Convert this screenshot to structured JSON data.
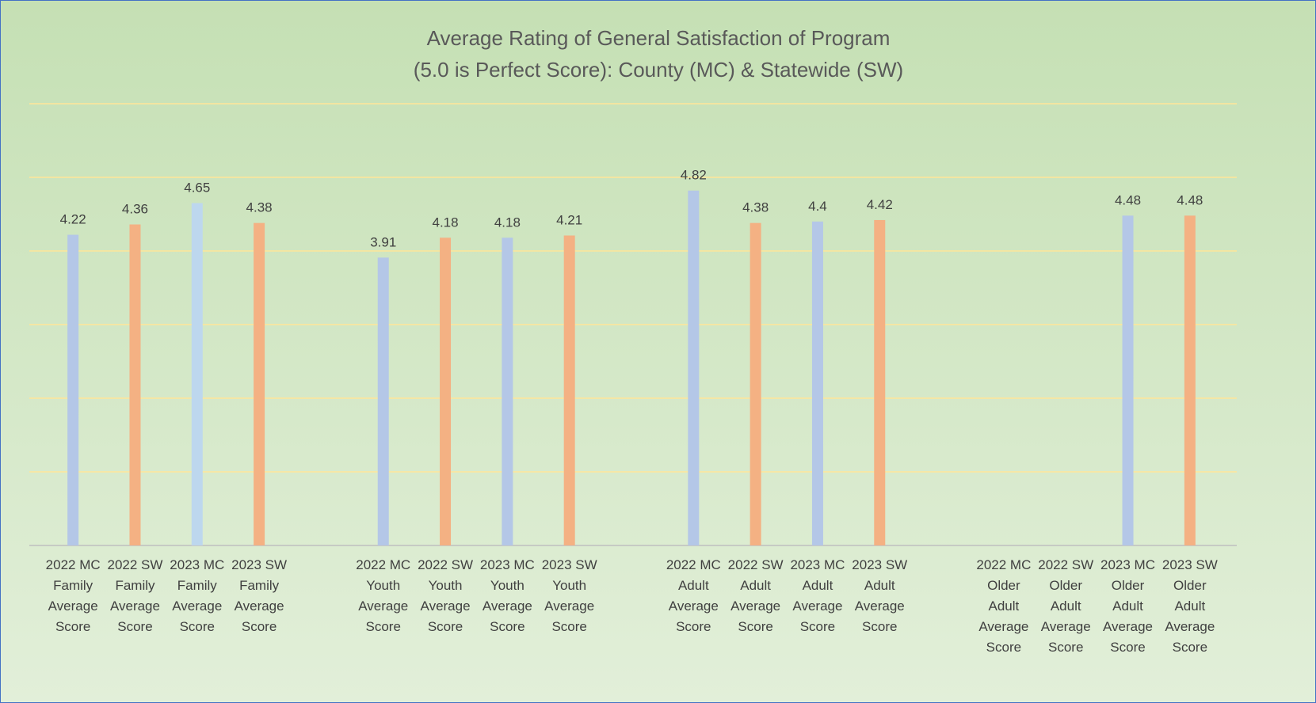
{
  "chart_data": {
    "type": "bar",
    "title": [
      "Average Rating of General Satisfaction of Program",
      "(5.0 is Perfect Score): County (MC) & Statewide (SW)"
    ],
    "categories": [
      "2022 MC Family Average Score",
      "2022 SW Family Average Score",
      "2023 MC Family Average Score",
      "2023 SW Family Average Score",
      null,
      "2022 MC Youth Average Score",
      "2022 SW Youth Average Score",
      "2023 MC Youth Average Score",
      "2023 SW Youth Average Score",
      null,
      "2022 MC Adult Average Score",
      "2022 SW Adult Average Score",
      "2023 MC Adult Average Score",
      "2023 SW Adult Average Score",
      null,
      "2022 MC Older Adult Average Score",
      "2022 SW Older Adult Average Score",
      "2023 MC Older Adult Average Score",
      "2023 SW Older Adult Average Score"
    ],
    "values": [
      4.22,
      4.36,
      4.65,
      4.38,
      null,
      3.91,
      4.18,
      4.18,
      4.21,
      null,
      4.82,
      4.38,
      4.4,
      4.42,
      null,
      null,
      null,
      4.48,
      4.48
    ],
    "colors": [
      "#b4c7e7",
      "#f4b183",
      "#bdd7ee",
      "#f4b183",
      null,
      "#b4c7e7",
      "#f4b183",
      "#b4c7e7",
      "#f4b183",
      null,
      "#b4c7e7",
      "#f4b183",
      "#b4c7e7",
      "#f4b183",
      null,
      null,
      null,
      "#b4c7e7",
      "#f4b183"
    ],
    "ylim": [
      0,
      6
    ],
    "yticks": [
      0,
      1,
      2,
      3,
      4,
      5,
      6
    ],
    "grid": true
  }
}
